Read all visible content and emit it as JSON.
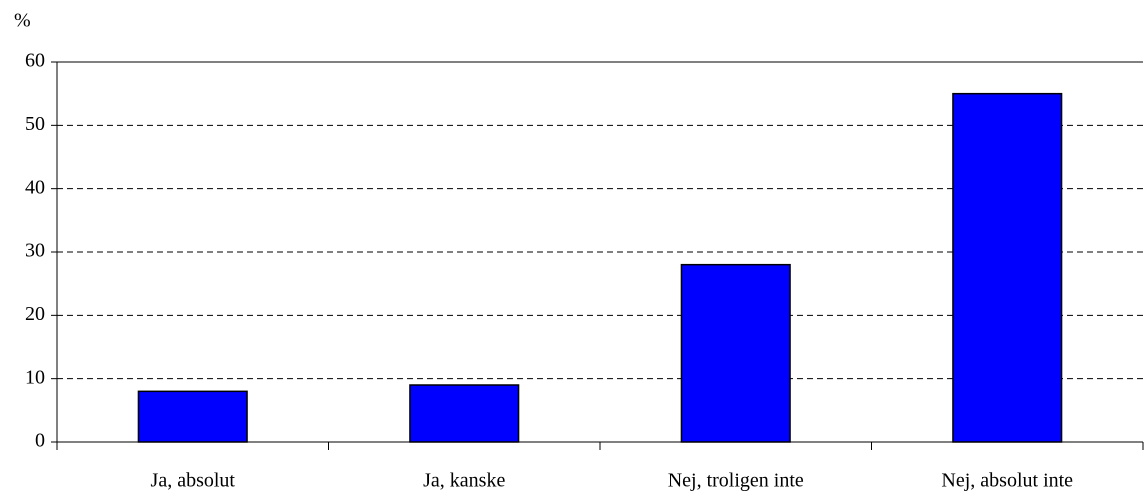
{
  "chart_data": {
    "type": "bar",
    "y_label": "%",
    "categories": [
      "Ja, absolut",
      "Ja, kanske",
      "Nej, troligen inte",
      "Nej, absolut inte"
    ],
    "values": [
      8,
      9,
      28,
      55
    ],
    "color": "#0000ff",
    "ylim": [
      0,
      60
    ],
    "yticks": [
      0,
      10,
      20,
      30,
      40,
      50,
      60
    ],
    "grid": true
  }
}
